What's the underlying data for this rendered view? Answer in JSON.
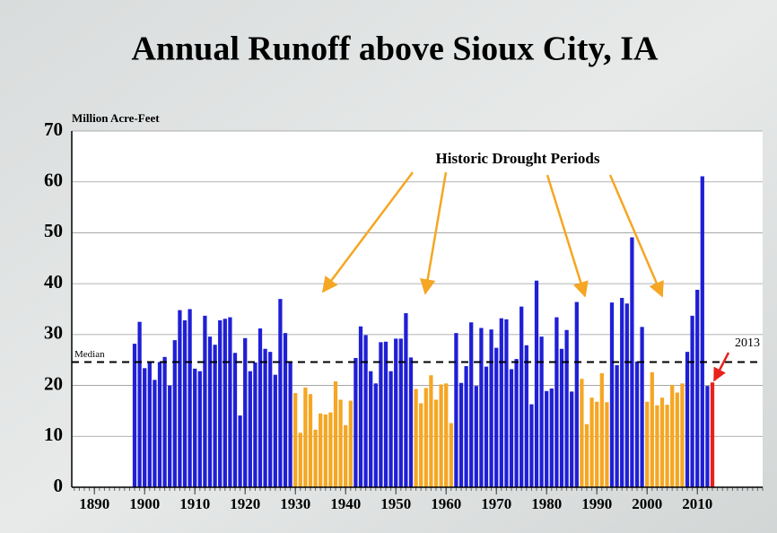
{
  "chart_data": {
    "type": "bar",
    "title": "Annual Runoff above Sioux City, IA",
    "y_label": "Million Acre-Feet",
    "annotations": [
      "Historic Drought Periods",
      "2013"
    ],
    "median": 24.6,
    "median_label": "Median",
    "x": [
      1898,
      1899,
      1900,
      1901,
      1902,
      1903,
      1904,
      1905,
      1906,
      1907,
      1908,
      1909,
      1910,
      1911,
      1912,
      1913,
      1914,
      1915,
      1916,
      1917,
      1918,
      1919,
      1920,
      1921,
      1922,
      1923,
      1924,
      1925,
      1926,
      1927,
      1928,
      1929,
      1930,
      1931,
      1932,
      1933,
      1934,
      1935,
      1936,
      1937,
      1938,
      1939,
      1940,
      1941,
      1942,
      1943,
      1944,
      1945,
      1946,
      1947,
      1948,
      1949,
      1950,
      1951,
      1952,
      1953,
      1954,
      1955,
      1956,
      1957,
      1958,
      1959,
      1960,
      1961,
      1962,
      1963,
      1964,
      1965,
      1966,
      1967,
      1968,
      1969,
      1970,
      1971,
      1972,
      1973,
      1974,
      1975,
      1976,
      1977,
      1978,
      1979,
      1980,
      1981,
      1982,
      1983,
      1984,
      1985,
      1986,
      1987,
      1988,
      1989,
      1990,
      1991,
      1992,
      1993,
      1994,
      1995,
      1996,
      1997,
      1998,
      1999,
      2000,
      2001,
      2002,
      2003,
      2004,
      2005,
      2006,
      2007,
      2008,
      2009,
      2010,
      2011,
      2012,
      2013
    ],
    "values": [
      28.2,
      32.5,
      23.4,
      24.6,
      21.1,
      24.6,
      25.6,
      20,
      28.9,
      34.8,
      32.8,
      35,
      23.3,
      22.8,
      33.7,
      29.6,
      28,
      32.8,
      33.1,
      33.4,
      26.4,
      14.1,
      29.3,
      22.8,
      24.5,
      31.2,
      27.2,
      26.6,
      22.1,
      37,
      30.3,
      24.6,
      18.5,
      10.7,
      19.6,
      18.3,
      11.3,
      14.5,
      14.3,
      14.7,
      20.8,
      17.2,
      12.2,
      17,
      25.4,
      31.6,
      29.9,
      22.8,
      20.4,
      28.5,
      28.6,
      22.8,
      29.2,
      29.2,
      34.2,
      25.5,
      19.3,
      16.5,
      19.5,
      22,
      17.2,
      20.2,
      20.4,
      12.6,
      30.3,
      20.5,
      23.8,
      32.4,
      19.9,
      31.3,
      23.7,
      31,
      27.4,
      33.2,
      33,
      23.2,
      25.2,
      35.5,
      27.9,
      16.3,
      40.6,
      29.6,
      18.9,
      19.4,
      33.4,
      27.2,
      30.9,
      18.8,
      36.4,
      21.3,
      12.4,
      17.6,
      16.8,
      22.4,
      16.7,
      36.3,
      24,
      37.2,
      36.1,
      49.1,
      24.7,
      31.5,
      16.8,
      22.6,
      16.1,
      17.6,
      16.2,
      20.1,
      18.6,
      20.4,
      26.6,
      33.7,
      38.8,
      61.1,
      19.9,
      20.6
    ],
    "colors": [
      "#1f1fd6",
      "#1f1fd6",
      "#1f1fd6",
      "#1f1fd6",
      "#1f1fd6",
      "#1f1fd6",
      "#1f1fd6",
      "#1f1fd6",
      "#1f1fd6",
      "#1f1fd6",
      "#1f1fd6",
      "#1f1fd6",
      "#1f1fd6",
      "#1f1fd6",
      "#1f1fd6",
      "#1f1fd6",
      "#1f1fd6",
      "#1f1fd6",
      "#1f1fd6",
      "#1f1fd6",
      "#1f1fd6",
      "#1f1fd6",
      "#1f1fd6",
      "#1f1fd6",
      "#1f1fd6",
      "#1f1fd6",
      "#1f1fd6",
      "#1f1fd6",
      "#1f1fd6",
      "#1f1fd6",
      "#1f1fd6",
      "#1f1fd6",
      "#f5a623",
      "#f5a623",
      "#f5a623",
      "#f5a623",
      "#f5a623",
      "#f5a623",
      "#f5a623",
      "#f5a623",
      "#f5a623",
      "#f5a623",
      "#f5a623",
      "#f5a623",
      "#1f1fd6",
      "#1f1fd6",
      "#1f1fd6",
      "#1f1fd6",
      "#1f1fd6",
      "#1f1fd6",
      "#1f1fd6",
      "#1f1fd6",
      "#1f1fd6",
      "#1f1fd6",
      "#1f1fd6",
      "#1f1fd6",
      "#f5a623",
      "#f5a623",
      "#f5a623",
      "#f5a623",
      "#f5a623",
      "#f5a623",
      "#f5a623",
      "#f5a623",
      "#1f1fd6",
      "#1f1fd6",
      "#1f1fd6",
      "#1f1fd6",
      "#1f1fd6",
      "#1f1fd6",
      "#1f1fd6",
      "#1f1fd6",
      "#1f1fd6",
      "#1f1fd6",
      "#1f1fd6",
      "#1f1fd6",
      "#1f1fd6",
      "#1f1fd6",
      "#1f1fd6",
      "#1f1fd6",
      "#1f1fd6",
      "#1f1fd6",
      "#1f1fd6",
      "#1f1fd6",
      "#1f1fd6",
      "#1f1fd6",
      "#1f1fd6",
      "#1f1fd6",
      "#1f1fd6",
      "#f5a623",
      "#f5a623",
      "#f5a623",
      "#f5a623",
      "#f5a623",
      "#f5a623",
      "#1f1fd6",
      "#1f1fd6",
      "#1f1fd6",
      "#1f1fd6",
      "#1f1fd6",
      "#1f1fd6",
      "#1f1fd6",
      "#f5a623",
      "#f5a623",
      "#f5a623",
      "#f5a623",
      "#f5a623",
      "#f5a623",
      "#f5a623",
      "#f5a623",
      "#1f1fd6",
      "#1f1fd6",
      "#1f1fd6",
      "#1f1fd6",
      "#1f1fd6",
      "#e8221b"
    ],
    "xlim": [
      1885.5,
      2023
    ],
    "xticks": [
      1890,
      1900,
      1910,
      1920,
      1930,
      1940,
      1950,
      1960,
      1970,
      1980,
      1990,
      2000,
      2010
    ],
    "ylim": [
      0,
      70
    ],
    "yticks": [
      0,
      10,
      20,
      30,
      40,
      50,
      60,
      70
    ],
    "grid": true
  }
}
